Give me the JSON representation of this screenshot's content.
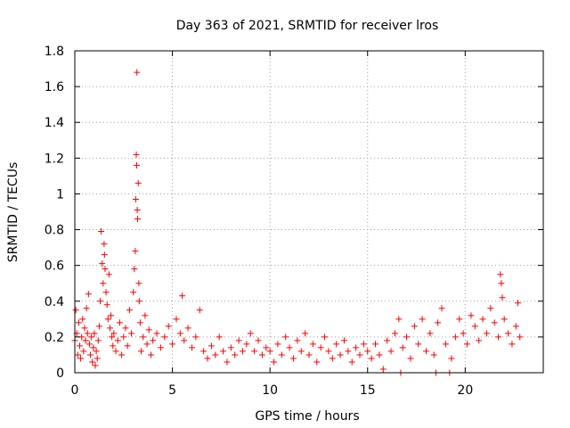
{
  "chart_data": {
    "type": "scatter",
    "title": "Day 363 of 2021, SRMTID for receiver lros",
    "xlabel": "GPS time / hours",
    "ylabel": "SRMTID / TECUs",
    "xlim": [
      0,
      24
    ],
    "ylim": [
      0,
      1.8
    ],
    "xticks": [
      0,
      5,
      10,
      15,
      20
    ],
    "xtick_labels": [
      "0",
      "5",
      "10",
      "15",
      "20"
    ],
    "yticks": [
      0,
      0.2,
      0.4,
      0.6,
      0.8,
      1,
      1.2,
      1.4,
      1.6,
      1.8
    ],
    "ytick_labels": [
      "0",
      "0.2",
      "0.4",
      "0.6",
      "0.8",
      "1",
      "1.2",
      "1.4",
      "1.6",
      "1.8"
    ],
    "grid": true,
    "marker": "+",
    "color": "#ff0000",
    "series": [
      {
        "name": "SRMTID",
        "points": [
          [
            0.0,
            0.18
          ],
          [
            0.05,
            0.35
          ],
          [
            0.1,
            0.22
          ],
          [
            0.15,
            0.1
          ],
          [
            0.2,
            0.28
          ],
          [
            0.25,
            0.15
          ],
          [
            0.3,
            0.08
          ],
          [
            0.35,
            0.2
          ],
          [
            0.4,
            0.3
          ],
          [
            0.45,
            0.12
          ],
          [
            0.5,
            0.25
          ],
          [
            0.55,
            0.18
          ],
          [
            0.6,
            0.36
          ],
          [
            0.65,
            0.22
          ],
          [
            0.7,
            0.44
          ],
          [
            0.75,
            0.16
          ],
          [
            0.8,
            0.1
          ],
          [
            0.85,
            0.2
          ],
          [
            0.9,
            0.06
          ],
          [
            0.95,
            0.14
          ],
          [
            1.0,
            0.22
          ],
          [
            1.05,
            0.04
          ],
          [
            1.1,
            0.12
          ],
          [
            1.15,
            0.08
          ],
          [
            1.2,
            0.18
          ],
          [
            1.25,
            0.26
          ],
          [
            1.3,
            0.4
          ],
          [
            1.35,
            0.79
          ],
          [
            1.4,
            0.61
          ],
          [
            1.45,
            0.5
          ],
          [
            1.5,
            0.72
          ],
          [
            1.52,
            0.66
          ],
          [
            1.55,
            0.58
          ],
          [
            1.6,
            0.45
          ],
          [
            1.65,
            0.38
          ],
          [
            1.7,
            0.3
          ],
          [
            1.75,
            0.55
          ],
          [
            1.8,
            0.25
          ],
          [
            1.85,
            0.32
          ],
          [
            1.9,
            0.2
          ],
          [
            1.95,
            0.15
          ],
          [
            2.0,
            0.22
          ],
          [
            2.1,
            0.12
          ],
          [
            2.2,
            0.18
          ],
          [
            2.3,
            0.28
          ],
          [
            2.4,
            0.1
          ],
          [
            2.5,
            0.2
          ],
          [
            2.6,
            0.25
          ],
          [
            2.7,
            0.15
          ],
          [
            2.8,
            0.35
          ],
          [
            2.9,
            0.22
          ],
          [
            3.0,
            0.45
          ],
          [
            3.05,
            0.58
          ],
          [
            3.1,
            0.68
          ],
          [
            3.12,
            0.97
          ],
          [
            3.15,
            1.22
          ],
          [
            3.17,
            1.16
          ],
          [
            3.18,
            1.68
          ],
          [
            3.2,
            0.91
          ],
          [
            3.22,
            0.86
          ],
          [
            3.25,
            1.06
          ],
          [
            3.28,
            0.5
          ],
          [
            3.3,
            0.4
          ],
          [
            3.35,
            0.28
          ],
          [
            3.4,
            0.12
          ],
          [
            3.5,
            0.2
          ],
          [
            3.6,
            0.32
          ],
          [
            3.7,
            0.16
          ],
          [
            3.8,
            0.24
          ],
          [
            3.9,
            0.1
          ],
          [
            4.0,
            0.18
          ],
          [
            4.2,
            0.22
          ],
          [
            4.4,
            0.14
          ],
          [
            4.6,
            0.2
          ],
          [
            4.8,
            0.26
          ],
          [
            5.0,
            0.16
          ],
          [
            5.2,
            0.3
          ],
          [
            5.4,
            0.22
          ],
          [
            5.5,
            0.43
          ],
          [
            5.6,
            0.18
          ],
          [
            5.8,
            0.25
          ],
          [
            6.0,
            0.14
          ],
          [
            6.2,
            0.2
          ],
          [
            6.4,
            0.35
          ],
          [
            6.6,
            0.12
          ],
          [
            6.8,
            0.08
          ],
          [
            7.0,
            0.15
          ],
          [
            7.2,
            0.1
          ],
          [
            7.4,
            0.2
          ],
          [
            7.6,
            0.12
          ],
          [
            7.8,
            0.06
          ],
          [
            8.0,
            0.14
          ],
          [
            8.2,
            0.1
          ],
          [
            8.4,
            0.18
          ],
          [
            8.6,
            0.12
          ],
          [
            8.8,
            0.16
          ],
          [
            9.0,
            0.22
          ],
          [
            9.2,
            0.12
          ],
          [
            9.4,
            0.18
          ],
          [
            9.6,
            0.1
          ],
          [
            9.8,
            0.14
          ],
          [
            10.0,
            0.12
          ],
          [
            10.2,
            0.06
          ],
          [
            10.4,
            0.16
          ],
          [
            10.6,
            0.1
          ],
          [
            10.8,
            0.2
          ],
          [
            11.0,
            0.14
          ],
          [
            11.2,
            0.08
          ],
          [
            11.4,
            0.18
          ],
          [
            11.6,
            0.12
          ],
          [
            11.8,
            0.22
          ],
          [
            12.0,
            0.1
          ],
          [
            12.2,
            0.16
          ],
          [
            12.4,
            0.06
          ],
          [
            12.6,
            0.14
          ],
          [
            12.8,
            0.2
          ],
          [
            13.0,
            0.12
          ],
          [
            13.2,
            0.08
          ],
          [
            13.4,
            0.16
          ],
          [
            13.6,
            0.1
          ],
          [
            13.8,
            0.18
          ],
          [
            14.0,
            0.12
          ],
          [
            14.2,
            0.06
          ],
          [
            14.4,
            0.14
          ],
          [
            14.6,
            0.1
          ],
          [
            14.8,
            0.16
          ],
          [
            15.0,
            0.12
          ],
          [
            15.2,
            0.08
          ],
          [
            15.4,
            0.16
          ],
          [
            15.6,
            0.1
          ],
          [
            15.8,
            0.02
          ],
          [
            16.0,
            0.18
          ],
          [
            16.2,
            0.12
          ],
          [
            16.4,
            0.22
          ],
          [
            16.6,
            0.3
          ],
          [
            16.7,
            0.0
          ],
          [
            16.8,
            0.14
          ],
          [
            17.0,
            0.2
          ],
          [
            17.2,
            0.08
          ],
          [
            17.4,
            0.26
          ],
          [
            17.6,
            0.16
          ],
          [
            17.8,
            0.3
          ],
          [
            18.0,
            0.12
          ],
          [
            18.2,
            0.22
          ],
          [
            18.4,
            0.1
          ],
          [
            18.5,
            0.0
          ],
          [
            18.6,
            0.28
          ],
          [
            18.8,
            0.36
          ],
          [
            19.0,
            0.16
          ],
          [
            19.2,
            0.0
          ],
          [
            19.3,
            0.08
          ],
          [
            19.5,
            0.2
          ],
          [
            19.7,
            0.3
          ],
          [
            19.9,
            0.22
          ],
          [
            20.1,
            0.16
          ],
          [
            20.3,
            0.32
          ],
          [
            20.5,
            0.26
          ],
          [
            20.7,
            0.18
          ],
          [
            20.9,
            0.3
          ],
          [
            21.1,
            0.22
          ],
          [
            21.3,
            0.36
          ],
          [
            21.5,
            0.28
          ],
          [
            21.7,
            0.2
          ],
          [
            21.8,
            0.55
          ],
          [
            21.85,
            0.5
          ],
          [
            21.9,
            0.42
          ],
          [
            22.0,
            0.3
          ],
          [
            22.2,
            0.22
          ],
          [
            22.4,
            0.16
          ],
          [
            22.6,
            0.26
          ],
          [
            22.7,
            0.39
          ],
          [
            22.8,
            0.2
          ]
        ]
      }
    ]
  }
}
